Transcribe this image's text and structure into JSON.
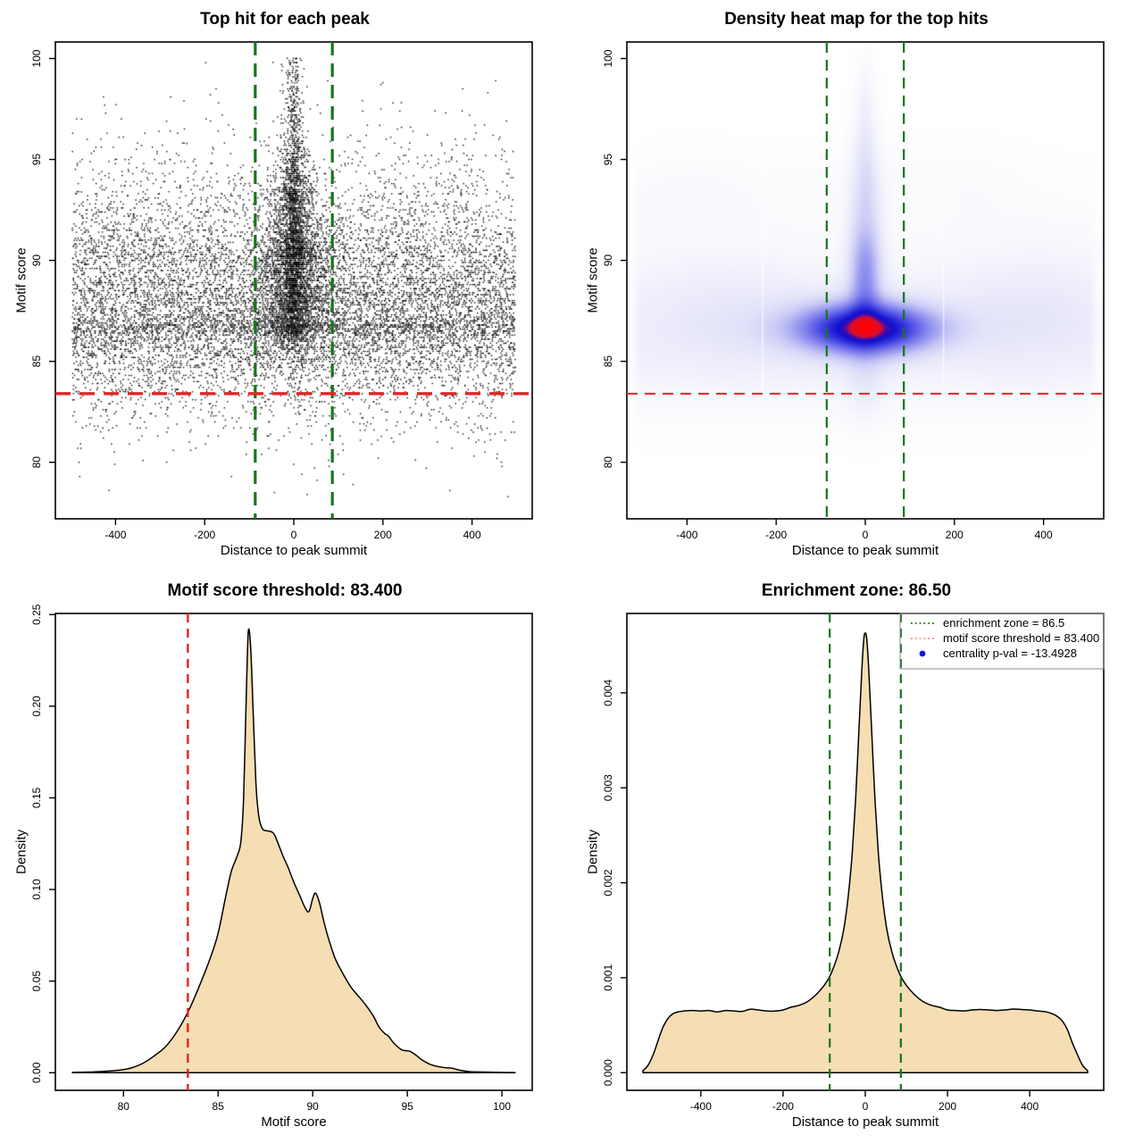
{
  "key_values": {
    "motif_score_threshold": "83.400",
    "enrichment_zone": "86.5",
    "centrality_p_val": "-13.4928"
  },
  "colors": {
    "zone_green": "#17751c",
    "threshold_red": "#e02525",
    "legend_red": "#f08c7e",
    "legend_blue": "#1414e6",
    "density_fill": "#f5deb3",
    "points_black": "#000000",
    "legend_border": "#888888"
  },
  "chart_data": [
    {
      "id": "top-hits-scatter",
      "type": "scatter",
      "title": "Top hit for each peak",
      "xlabel": "Distance to peak summit",
      "ylabel": "Motif score",
      "xlim": [
        -535,
        535
      ],
      "ylim": [
        77.2,
        100.82
      ],
      "x_tick_values": [
        -400,
        -200,
        0,
        200,
        400
      ],
      "x_tick_labels": [
        "-400",
        "-200",
        "0",
        "200",
        "400"
      ],
      "y_tick_values": [
        80,
        85,
        90,
        95,
        100
      ],
      "y_tick_labels": [
        "80",
        "85",
        "90",
        "95",
        "100"
      ],
      "lines": {
        "enrichment_zone_x": [
          -86.5,
          86.5
        ],
        "score_threshold_y": 83.4
      },
      "zone_style": {
        "color": "#17751c",
        "width": 3.2,
        "dash": "15 9"
      },
      "threshold_style": {
        "color": "#e02525",
        "width": 3.4,
        "dash": "17 10"
      },
      "synthesis": {
        "seed": 1337,
        "n_background": 11000,
        "n_central": 4600,
        "tail_fraction": 0.1,
        "laplace_base": 12,
        "laplace_slope": 2.2,
        "laplace_min": 9,
        "laplace_max": 46,
        "clamp_x": 180,
        "quantize_step": 0.1,
        "point_size": 1.45,
        "point_alpha": 0.92,
        "x_range": [
          -497,
          497
        ]
      }
    },
    {
      "id": "density-heatmap",
      "type": "heatmap",
      "title": "Density heat map for the top hits",
      "xlabel": "Distance to peak summit",
      "ylabel": "Motif score",
      "xlim": [
        -535,
        535
      ],
      "ylim": [
        77.2,
        100.82
      ],
      "x_tick_values": [
        -400,
        -200,
        0,
        200,
        400
      ],
      "x_tick_labels": [
        "-400",
        "-200",
        "0",
        "200",
        "400"
      ],
      "y_tick_values": [
        80,
        85,
        90,
        95,
        100
      ],
      "y_tick_labels": [
        "80",
        "85",
        "90",
        "95",
        "100"
      ],
      "lines": {
        "enrichment_zone_x": [
          -86.5,
          86.5
        ],
        "score_threshold_y": 83.4
      },
      "zone_style": {
        "color": "#17751c",
        "width": 2.2,
        "dash": "12 8"
      },
      "threshold_style": {
        "color": "#e02525",
        "width": 2.0,
        "dash": "12 8"
      },
      "hotspot": {
        "x": 0,
        "y": 86.6
      },
      "components": [
        [
          0,
          87.3,
          999999,
          2.3,
          0.55
        ],
        [
          0,
          85.2,
          999999,
          2.0,
          0.18
        ],
        [
          0,
          84.2,
          999999,
          1.4,
          0.1
        ],
        [
          0,
          92.5,
          999999,
          1.8,
          0.07
        ],
        [
          -330,
          87.6,
          110,
          2.1,
          0.28
        ],
        [
          -460,
          93.0,
          80,
          1.5,
          0.13
        ],
        [
          -320,
          93.6,
          90,
          1.3,
          0.12
        ],
        [
          -180,
          86.9,
          85,
          1.9,
          0.2
        ],
        [
          300,
          87.6,
          110,
          2.1,
          0.26
        ],
        [
          430,
          88.3,
          85,
          2.3,
          0.18
        ],
        [
          240,
          93.8,
          85,
          1.3,
          0.12
        ],
        [
          60,
          94.3,
          60,
          1.1,
          0.1
        ],
        [
          -120,
          93.8,
          70,
          1.2,
          0.08
        ],
        [
          0,
          90.6,
          27,
          3.3,
          1.6
        ],
        [
          0,
          95.5,
          16,
          2.3,
          0.5
        ],
        [
          0,
          98.2,
          12,
          1.4,
          0.2
        ],
        [
          0,
          90.1,
          21,
          0.95,
          0.9
        ],
        [
          0,
          88.9,
          20,
          0.85,
          0.85
        ],
        [
          0,
          87.6,
          23,
          0.95,
          0.95
        ],
        [
          2,
          86.62,
          93,
          0.8,
          8.0
        ],
        [
          0,
          86.62,
          170,
          0.55,
          0.35
        ],
        [
          0,
          84.3,
          35,
          1.4,
          0.3
        ],
        [
          0,
          82.8,
          42,
          1.1,
          0.1
        ]
      ],
      "colormap": [
        [
          0.0,
          255,
          255,
          255
        ],
        [
          0.05,
          243,
          243,
          252
        ],
        [
          0.1,
          229,
          229,
          250
        ],
        [
          0.18,
          203,
          203,
          246
        ],
        [
          0.3,
          153,
          153,
          240
        ],
        [
          0.45,
          98,
          98,
          232
        ],
        [
          0.6,
          48,
          48,
          218
        ],
        [
          0.72,
          15,
          15,
          206
        ],
        [
          0.8,
          70,
          10,
          170
        ],
        [
          0.865,
          215,
          15,
          45
        ],
        [
          1.0,
          255,
          0,
          0
        ]
      ],
      "white_streaks": [
        -232,
        174
      ],
      "edge_fade": {
        "limit": 500,
        "sigma": 15
      }
    },
    {
      "id": "motif-score-density",
      "type": "area",
      "title": "Motif score threshold: 83.400",
      "xlabel": "Motif score",
      "ylabel": "Density",
      "xlim": [
        76.4,
        101.6
      ],
      "ylim": [
        -0.0096,
        0.2506
      ],
      "x_tick_values": [
        80,
        85,
        90,
        95,
        100
      ],
      "x_tick_labels": [
        "80",
        "85",
        "90",
        "95",
        "100"
      ],
      "y_tick_values": [
        0.0,
        0.05,
        0.1,
        0.15,
        0.2,
        0.25
      ],
      "y_tick_labels": [
        "0.00",
        "0.05",
        "0.10",
        "0.15",
        "0.20",
        "0.25"
      ],
      "lines": {
        "score_threshold_x": 83.4
      },
      "threshold_style": {
        "color": "#e02525",
        "width": 2.4,
        "dash": "10 7"
      },
      "fill": "#f5deb3",
      "curve": [
        [
          77.3,
          0.0002
        ],
        [
          78.2,
          0.0004
        ],
        [
          79.0,
          0.0008
        ],
        [
          79.8,
          0.0014
        ],
        [
          80.4,
          0.0026
        ],
        [
          81.0,
          0.005
        ],
        [
          81.6,
          0.009
        ],
        [
          82.2,
          0.014
        ],
        [
          82.8,
          0.022
        ],
        [
          83.4,
          0.033
        ],
        [
          84.0,
          0.047
        ],
        [
          84.6,
          0.063
        ],
        [
          85.0,
          0.076
        ],
        [
          85.4,
          0.096
        ],
        [
          85.7,
          0.11
        ],
        [
          86.0,
          0.118
        ],
        [
          86.2,
          0.126
        ],
        [
          86.35,
          0.15
        ],
        [
          86.5,
          0.21
        ],
        [
          86.6,
          0.241
        ],
        [
          86.72,
          0.232
        ],
        [
          86.85,
          0.198
        ],
        [
          87.0,
          0.158
        ],
        [
          87.15,
          0.14
        ],
        [
          87.35,
          0.133
        ],
        [
          87.6,
          0.132
        ],
        [
          87.9,
          0.131
        ],
        [
          88.1,
          0.127
        ],
        [
          88.4,
          0.119
        ],
        [
          88.7,
          0.112
        ],
        [
          89.0,
          0.104
        ],
        [
          89.3,
          0.097
        ],
        [
          89.6,
          0.09
        ],
        [
          89.8,
          0.088
        ],
        [
          90.0,
          0.095
        ],
        [
          90.15,
          0.098
        ],
        [
          90.35,
          0.093
        ],
        [
          90.6,
          0.082
        ],
        [
          90.9,
          0.071
        ],
        [
          91.2,
          0.062
        ],
        [
          91.6,
          0.054
        ],
        [
          92.0,
          0.047
        ],
        [
          92.4,
          0.042
        ],
        [
          92.8,
          0.037
        ],
        [
          93.2,
          0.031
        ],
        [
          93.5,
          0.025
        ],
        [
          93.8,
          0.0215
        ],
        [
          94.0,
          0.02
        ],
        [
          94.3,
          0.016
        ],
        [
          94.7,
          0.0125
        ],
        [
          95.1,
          0.0118
        ],
        [
          95.4,
          0.01
        ],
        [
          95.8,
          0.0068
        ],
        [
          96.2,
          0.0046
        ],
        [
          96.7,
          0.0032
        ],
        [
          97.1,
          0.0027
        ],
        [
          97.4,
          0.0024
        ],
        [
          97.8,
          0.0013
        ],
        [
          98.3,
          0.0006
        ],
        [
          99.0,
          0.0004
        ],
        [
          99.8,
          0.0002
        ],
        [
          100.7,
          0.0001
        ]
      ]
    },
    {
      "id": "summit-distance-density",
      "type": "area",
      "title": "Enrichment zone: 86.50",
      "xlabel": "Distance to peak summit",
      "ylabel": "Density",
      "xlim": [
        -580,
        580
      ],
      "ylim": [
        -0.000186,
        0.004836
      ],
      "x_tick_values": [
        -400,
        -200,
        0,
        200,
        400
      ],
      "x_tick_labels": [
        "-400",
        "-200",
        "0",
        "200",
        "400"
      ],
      "y_tick_values": [
        0.0,
        0.001,
        0.002,
        0.003,
        0.004
      ],
      "y_tick_labels": [
        "0.000",
        "0.001",
        "0.002",
        "0.003",
        "0.004"
      ],
      "lines": {
        "enrichment_zone_x": [
          -86.5,
          86.5
        ]
      },
      "zone_style": {
        "color": "#17751c",
        "width": 2.2,
        "dash": "10 7"
      },
      "fill": "#f5deb3",
      "curve": [
        [
          -541,
          2e-05
        ],
        [
          -528,
          8e-05
        ],
        [
          -515,
          0.0002
        ],
        [
          -503,
          0.00035
        ],
        [
          -492,
          0.00048
        ],
        [
          -480,
          0.00057
        ],
        [
          -468,
          0.00062
        ],
        [
          -455,
          0.00064
        ],
        [
          -440,
          0.00065
        ],
        [
          -420,
          0.000655
        ],
        [
          -400,
          0.00065
        ],
        [
          -380,
          0.000655
        ],
        [
          -360,
          0.00064
        ],
        [
          -340,
          0.000655
        ],
        [
          -320,
          0.00065
        ],
        [
          -300,
          0.000645
        ],
        [
          -280,
          0.000668
        ],
        [
          -260,
          0.00066
        ],
        [
          -240,
          0.00065
        ],
        [
          -220,
          0.000648
        ],
        [
          -200,
          0.00066
        ],
        [
          -180,
          0.00069
        ],
        [
          -160,
          0.00071
        ],
        [
          -140,
          0.00075
        ],
        [
          -120,
          0.00082
        ],
        [
          -100,
          0.00092
        ],
        [
          -88,
          0.001
        ],
        [
          -76,
          0.00112
        ],
        [
          -64,
          0.00128
        ],
        [
          -52,
          0.00152
        ],
        [
          -42,
          0.00184
        ],
        [
          -32,
          0.0023
        ],
        [
          -24,
          0.00285
        ],
        [
          -16,
          0.00355
        ],
        [
          -9,
          0.0042
        ],
        [
          -4,
          0.00455
        ],
        [
          0,
          0.00463
        ],
        [
          4,
          0.00455
        ],
        [
          9,
          0.0042
        ],
        [
          16,
          0.00355
        ],
        [
          24,
          0.00285
        ],
        [
          32,
          0.0023
        ],
        [
          42,
          0.00184
        ],
        [
          52,
          0.00152
        ],
        [
          64,
          0.00128
        ],
        [
          76,
          0.00112
        ],
        [
          88,
          0.001
        ],
        [
          100,
          0.00092
        ],
        [
          120,
          0.00082
        ],
        [
          140,
          0.00075
        ],
        [
          160,
          0.00071
        ],
        [
          180,
          0.00069
        ],
        [
          200,
          0.00066
        ],
        [
          220,
          0.000655
        ],
        [
          240,
          0.00065
        ],
        [
          260,
          0.00066
        ],
        [
          280,
          0.000665
        ],
        [
          300,
          0.00066
        ],
        [
          320,
          0.000655
        ],
        [
          340,
          0.00066
        ],
        [
          360,
          0.00067
        ],
        [
          380,
          0.000665
        ],
        [
          400,
          0.00066
        ],
        [
          420,
          0.00065
        ],
        [
          440,
          0.00064
        ],
        [
          455,
          0.00062
        ],
        [
          468,
          0.00059
        ],
        [
          480,
          0.00054
        ],
        [
          492,
          0.00045
        ],
        [
          503,
          0.00032
        ],
        [
          515,
          0.0002
        ],
        [
          528,
          8e-05
        ],
        [
          541,
          2e-05
        ]
      ],
      "legend": {
        "border_color": "#888888",
        "items": [
          {
            "swatch": "dotted-line",
            "color": "#17751c",
            "label": "enrichment zone = 86.5"
          },
          {
            "swatch": "dotted-line",
            "color": "#f08c7e",
            "label": "motif score threshold = 83.400"
          },
          {
            "swatch": "dot",
            "color": "#1414e6",
            "label": "centrality p-val = -13.4928"
          }
        ]
      }
    }
  ]
}
